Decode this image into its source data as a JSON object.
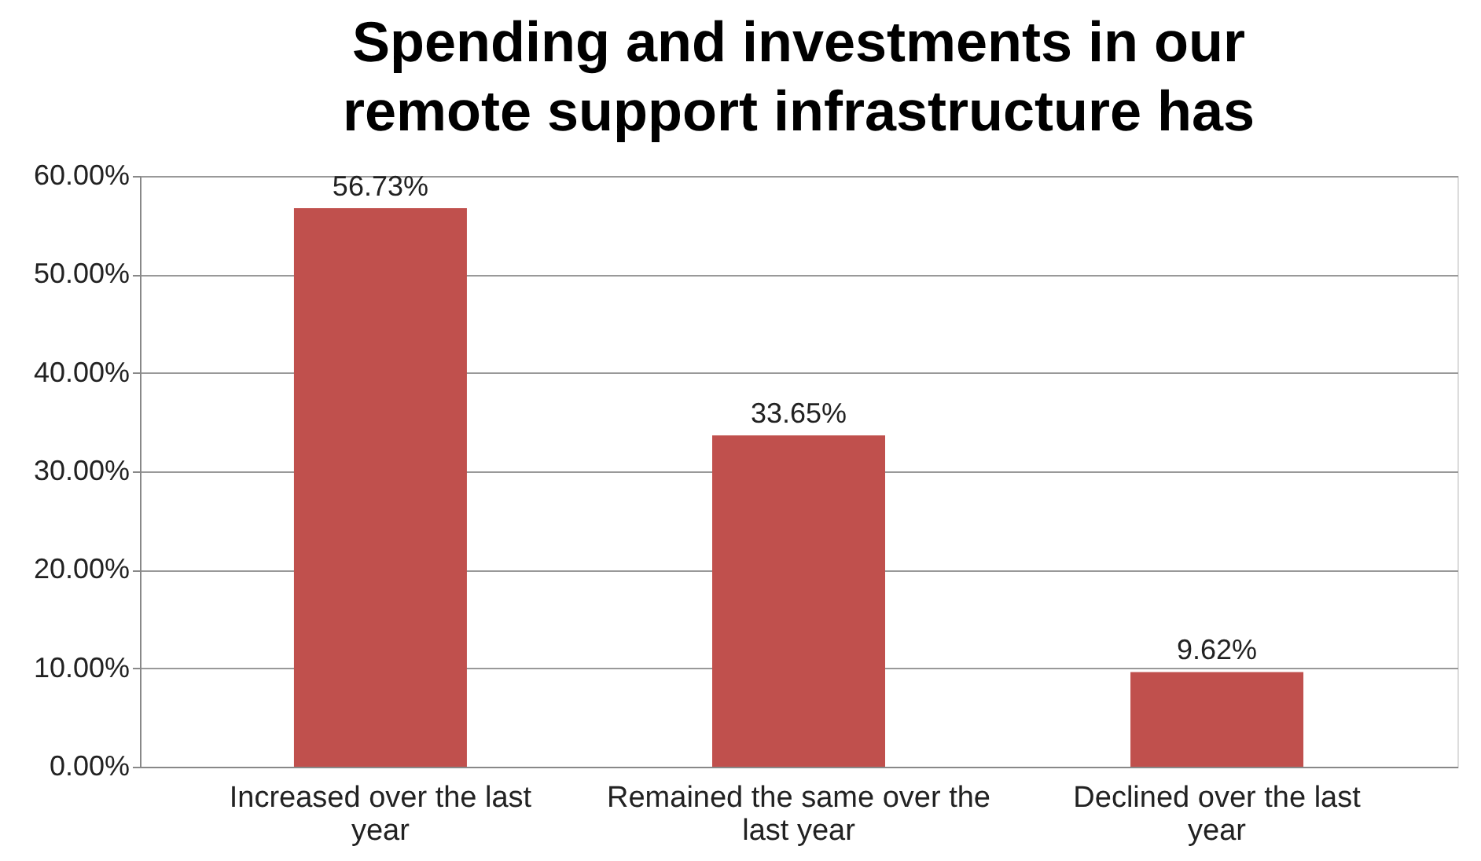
{
  "chart_data": {
    "type": "bar",
    "title": "Spending and investments in our remote support infrastructure has",
    "categories": [
      "Increased over the last year",
      "Remained the same over the last year",
      "Declined over the last year"
    ],
    "values": [
      56.73,
      33.65,
      9.62
    ],
    "color": "#c0504d",
    "value_labels": [
      "56.73%",
      "33.65%",
      "9.62%"
    ],
    "ylim": [
      0,
      60
    ],
    "yticks": [
      {
        "value": 0,
        "label": "0.00%"
      },
      {
        "value": 10,
        "label": "10.00%"
      },
      {
        "value": 20,
        "label": "20.00%"
      },
      {
        "value": 30,
        "label": "30.00%"
      },
      {
        "value": 40,
        "label": "40.00%"
      },
      {
        "value": 50,
        "label": "50.00%"
      },
      {
        "value": 60,
        "label": "60.00%"
      }
    ],
    "grid": "y"
  }
}
